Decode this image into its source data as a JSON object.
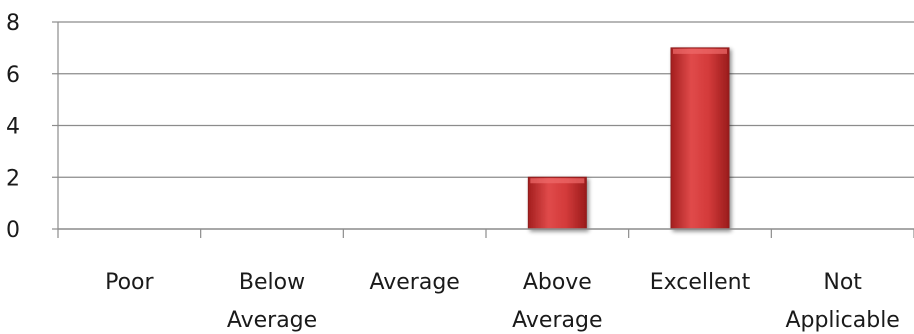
{
  "chart_data": {
    "type": "bar",
    "categories": [
      [
        "Poor"
      ],
      [
        "Below",
        "Average"
      ],
      [
        "Average"
      ],
      [
        "Above",
        "Average"
      ],
      [
        "Excellent"
      ],
      [
        "Not",
        "Applicable"
      ]
    ],
    "values": [
      0,
      0,
      0,
      2,
      7,
      0
    ],
    "ylim": [
      0,
      8
    ],
    "yticks": [
      0,
      2,
      4,
      6,
      8
    ],
    "grid": true,
    "legend": "none",
    "bar_color": "#c62828",
    "bar_edge_color": "#8e1b1b",
    "grid_color": "#8c8c8c",
    "axis_color": "#8c8c8c"
  }
}
